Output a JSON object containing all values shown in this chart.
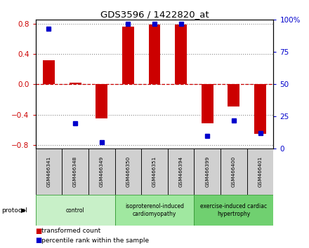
{
  "title": "GDS3596 / 1422820_at",
  "samples": [
    "GSM466341",
    "GSM466348",
    "GSM466349",
    "GSM466350",
    "GSM466351",
    "GSM466394",
    "GSM466399",
    "GSM466400",
    "GSM466401"
  ],
  "bar_values": [
    0.32,
    0.02,
    -0.45,
    0.76,
    0.79,
    0.79,
    -0.51,
    -0.29,
    -0.65
  ],
  "dot_values": [
    93,
    20,
    5,
    97,
    97,
    97,
    10,
    22,
    12
  ],
  "bar_color": "#cc0000",
  "dot_color": "#0000cc",
  "ylim_left": [
    -0.85,
    0.85
  ],
  "ylim_right": [
    0,
    100
  ],
  "yticks_left": [
    -0.8,
    -0.4,
    0.0,
    0.4,
    0.8
  ],
  "yticks_right": [
    0,
    25,
    50,
    75,
    100
  ],
  "ytick_right_labels": [
    "0",
    "25",
    "50",
    "75",
    "100%"
  ],
  "groups": [
    {
      "label": "control",
      "start": 0,
      "end": 3,
      "color": "#c8f0c8"
    },
    {
      "label": "isoproterenol-induced\ncardiomyopathy",
      "start": 3,
      "end": 6,
      "color": "#a0e8a0"
    },
    {
      "label": "exercise-induced cardiac\nhypertrophy",
      "start": 6,
      "end": 9,
      "color": "#70d070"
    }
  ],
  "protocol_label": "protocol",
  "legend_bar": "transformed count",
  "legend_dot": "percentile rank within the sample",
  "zero_line_color": "#cc0000",
  "grid_color": "#888888",
  "bar_width": 0.45,
  "sample_box_color": "#d0d0d0",
  "group_edge_color": "#339933"
}
